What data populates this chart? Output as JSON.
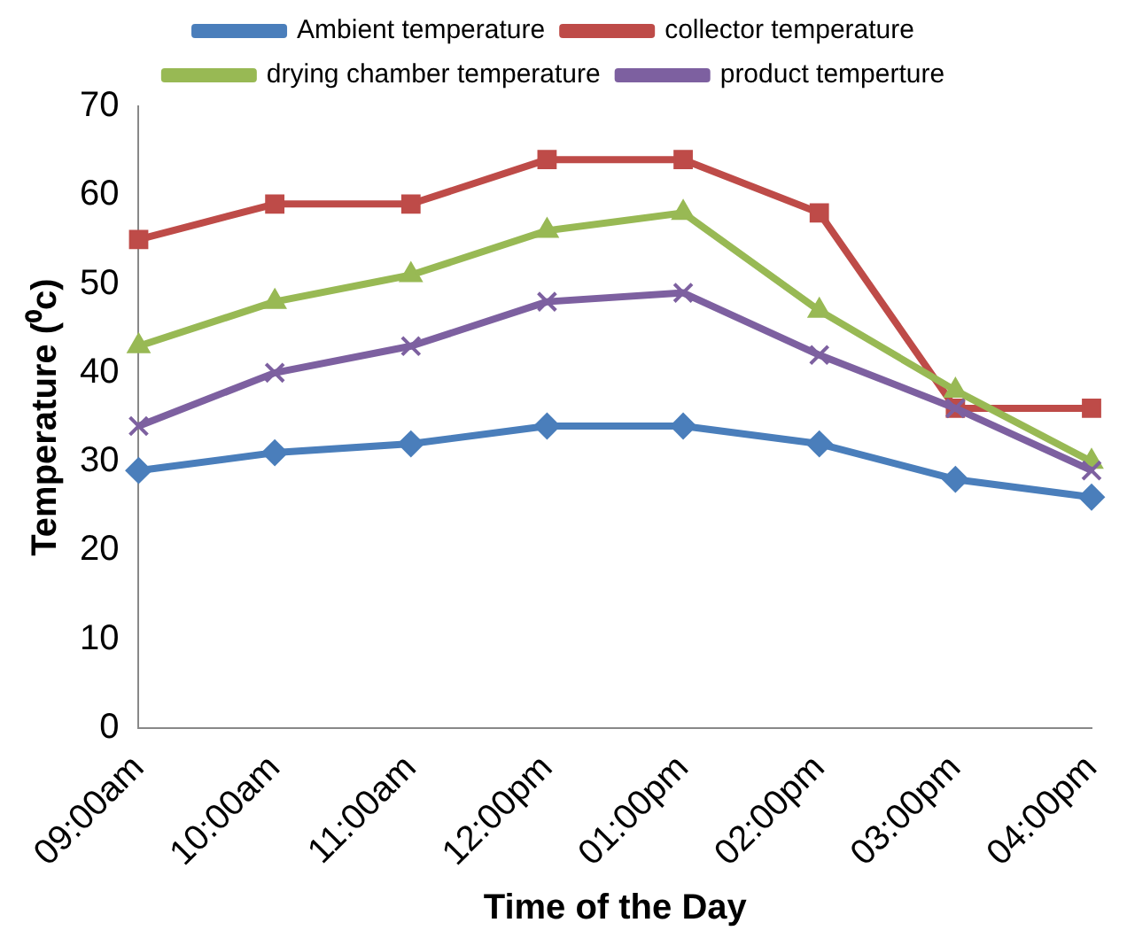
{
  "chart_data": {
    "type": "line",
    "xlabel": "Time of the Day",
    "ylabel": "Temperature (⁰c)",
    "categories": [
      "09:00am",
      "10:00am",
      "11:00am",
      "12:00pm",
      "01:00pm",
      "02:00pm",
      "03:00pm",
      "04:00pm"
    ],
    "ylim": [
      0,
      70
    ],
    "yticks": [
      0,
      10,
      20,
      30,
      40,
      50,
      60,
      70
    ],
    "grid": false,
    "legend": "top",
    "series": [
      {
        "name": "Ambient temperature",
        "color": "#4a7ebb",
        "marker": "diamond",
        "values": [
          29,
          31,
          32,
          34,
          34,
          32,
          28,
          26
        ]
      },
      {
        "name": "collector temperature",
        "color": "#be4b48",
        "marker": "square",
        "values": [
          55,
          59,
          59,
          64,
          64,
          58,
          36,
          36
        ]
      },
      {
        "name": "drying chamber temperature",
        "color": "#98b954",
        "marker": "triangle",
        "values": [
          43,
          48,
          51,
          56,
          58,
          47,
          38,
          30
        ]
      },
      {
        "name": "product temperture",
        "color": "#7d60a0",
        "marker": "cross",
        "values": [
          34,
          40,
          43,
          48,
          49,
          42,
          36,
          29
        ]
      }
    ]
  }
}
